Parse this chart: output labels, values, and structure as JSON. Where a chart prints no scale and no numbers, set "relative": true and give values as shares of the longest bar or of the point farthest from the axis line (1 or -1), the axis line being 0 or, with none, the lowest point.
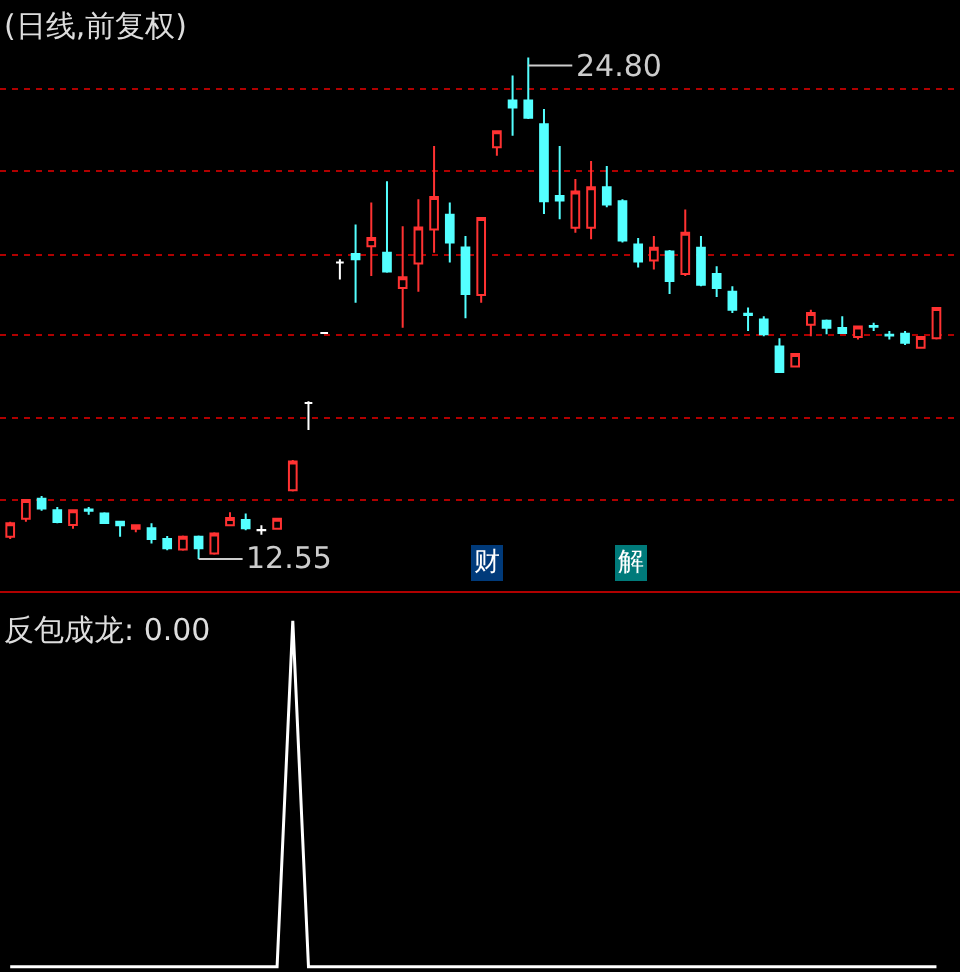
{
  "chart_data": [
    {
      "type": "candlestick",
      "title": "(日线,前复权)",
      "categories": [
        null,
        null,
        null,
        null,
        null,
        null,
        null,
        null,
        null,
        null,
        null,
        null,
        null,
        null,
        null,
        null,
        null,
        null,
        null,
        null,
        null,
        null,
        null,
        null,
        null,
        null,
        null,
        null,
        null,
        null,
        null,
        null,
        null,
        null,
        null,
        null,
        null,
        null,
        null,
        null,
        null,
        null,
        null,
        null,
        null,
        null,
        null,
        null,
        null,
        null,
        null,
        null,
        null,
        null,
        null,
        null,
        null,
        null,
        null,
        null
      ],
      "ohlc": [
        [
          13.09,
          13.46,
          13.04,
          13.42
        ],
        [
          13.53,
          13.99,
          13.46,
          13.99
        ],
        [
          14.02,
          14.09,
          13.73,
          13.78
        ],
        [
          13.74,
          13.82,
          13.42,
          13.45
        ],
        [
          13.38,
          13.74,
          13.29,
          13.74
        ],
        [
          13.76,
          13.82,
          13.63,
          13.73
        ],
        [
          13.66,
          13.69,
          13.42,
          13.43
        ],
        [
          13.46,
          13.48,
          13.09,
          13.37
        ],
        [
          13.29,
          13.37,
          13.2,
          13.37
        ],
        [
          13.3,
          13.42,
          12.93,
          13.04
        ],
        [
          13.04,
          13.11,
          12.76,
          12.81
        ],
        [
          12.78,
          13.12,
          12.75,
          13.09
        ],
        [
          13.09,
          13.12,
          12.55,
          12.81
        ],
        [
          12.68,
          13.2,
          12.65,
          13.17
        ],
        [
          13.37,
          13.69,
          13.37,
          13.55
        ],
        [
          13.5,
          13.66,
          13.25,
          13.3
        ],
        [
          13.26,
          13.37,
          13.14,
          13.25
        ],
        [
          13.29,
          13.53,
          13.29,
          13.53
        ],
        [
          14.23,
          14.97,
          14.2,
          14.93
        ],
        [
          16.36,
          16.4,
          15.7,
          16.36
        ],
        [
          18.07,
          18.07,
          18.07,
          18.07
        ],
        [
          19.79,
          19.87,
          19.38,
          19.79
        ],
        [
          20.0,
          20.72,
          18.81,
          19.87
        ],
        [
          20.19,
          21.26,
          19.46,
          20.39
        ],
        [
          20.03,
          21.78,
          19.54,
          19.57
        ],
        [
          19.17,
          20.68,
          18.2,
          19.43
        ],
        [
          19.77,
          21.34,
          19.08,
          20.65
        ],
        [
          20.6,
          22.64,
          20.03,
          21.39
        ],
        [
          20.96,
          21.26,
          19.79,
          20.28
        ],
        [
          20.16,
          20.44,
          18.43,
          19.02
        ],
        [
          19.0,
          20.88,
          18.81,
          20.88
        ],
        [
          22.61,
          23.0,
          22.4,
          23.0
        ],
        [
          23.75,
          24.36,
          22.89,
          23.58
        ],
        [
          23.75,
          24.8,
          23.3,
          23.33
        ],
        [
          23.17,
          23.54,
          20.98,
          21.29
        ],
        [
          21.42,
          22.64,
          20.85,
          21.31
        ],
        [
          20.64,
          21.83,
          20.52,
          21.53
        ],
        [
          20.64,
          22.27,
          20.36,
          21.63
        ],
        [
          21.63,
          22.15,
          21.14,
          21.21
        ],
        [
          21.29,
          21.34,
          20.28,
          20.33
        ],
        [
          20.23,
          20.39,
          19.67,
          19.82
        ],
        [
          19.84,
          20.44,
          19.62,
          20.15
        ],
        [
          20.06,
          20.1,
          19.02,
          19.34
        ],
        [
          19.51,
          21.09,
          19.46,
          20.52
        ],
        [
          20.15,
          20.44,
          19.21,
          19.25
        ],
        [
          19.51,
          19.7,
          18.95,
          19.17
        ],
        [
          19.08,
          19.21,
          18.56,
          18.64
        ],
        [
          18.54,
          18.69,
          18.12,
          18.51
        ],
        [
          18.4,
          18.48,
          17.99,
          18.04
        ],
        [
          17.74,
          17.94,
          17.09,
          17.12
        ],
        [
          17.25,
          17.56,
          17.25,
          17.56
        ],
        [
          18.27,
          18.64,
          17.99,
          18.56
        ],
        [
          18.37,
          18.4,
          18.04,
          18.2
        ],
        [
          18.19,
          18.48,
          18.05,
          18.07
        ],
        [
          17.97,
          18.23,
          17.91,
          18.23
        ],
        [
          18.24,
          18.32,
          18.12,
          18.22
        ],
        [
          18.03,
          18.12,
          17.91,
          18.01
        ],
        [
          18.05,
          18.12,
          17.78,
          17.83
        ],
        [
          17.71,
          17.97,
          17.71,
          17.97
        ],
        [
          17.94,
          18.68,
          17.91,
          18.68
        ]
      ],
      "colors": [
        "#ff3232",
        "#ff3232",
        "#54ffff",
        "#54ffff",
        "#ff3232",
        "#54ffff",
        "#54ffff",
        "#54ffff",
        "#ff3232",
        "#54ffff",
        "#54ffff",
        "#ff3232",
        "#54ffff",
        "#ff3232",
        "#ff3232",
        "#54ffff",
        "#ffffff",
        "#ff3232",
        "#ff3232",
        "#ffffff",
        "#ffffff",
        "#ffffff",
        "#54ffff",
        "#ff3232",
        "#54ffff",
        "#ff3232",
        "#ff3232",
        "#ff3232",
        "#54ffff",
        "#54ffff",
        "#ff3232",
        "#ff3232",
        "#54ffff",
        "#54ffff",
        "#54ffff",
        "#54ffff",
        "#ff3232",
        "#ff3232",
        "#54ffff",
        "#54ffff",
        "#54ffff",
        "#ff3232",
        "#54ffff",
        "#ff3232",
        "#54ffff",
        "#54ffff",
        "#54ffff",
        "#54ffff",
        "#54ffff",
        "#54ffff",
        "#ff3232",
        "#ff3232",
        "#54ffff",
        "#54ffff",
        "#ff3232",
        "#54ffff",
        "#54ffff",
        "#54ffff",
        "#ff3232",
        "#ff3232"
      ],
      "yticks": [
        {
          "value": 13.99,
          "label": null
        },
        {
          "value": 16.0,
          "label": null
        },
        {
          "value": 18.02,
          "label": null
        },
        {
          "value": 19.98,
          "label": null
        },
        {
          "value": 22.04,
          "label": null
        },
        {
          "value": 24.03,
          "label": null
        }
      ],
      "grid": "y",
      "annotations": [
        "24.80",
        "12.55",
        "财",
        "解"
      ]
    },
    {
      "type": "line",
      "title": "反包成龙: 0.00",
      "relative": true,
      "color": "#ffffff",
      "categories": [
        null,
        null,
        null,
        null,
        null,
        null,
        null,
        null,
        null,
        null,
        null,
        null,
        null,
        null,
        null,
        null,
        null,
        null,
        null,
        null,
        null,
        null,
        null,
        null,
        null,
        null,
        null,
        null,
        null,
        null,
        null,
        null,
        null,
        null,
        null,
        null,
        null,
        null,
        null,
        null,
        null,
        null,
        null,
        null,
        null,
        null,
        null,
        null,
        null,
        null,
        null,
        null,
        null,
        null,
        null,
        null,
        null,
        null,
        null,
        null
      ],
      "values": [
        0,
        0,
        0,
        0,
        0,
        0,
        0,
        0,
        0,
        0,
        0,
        0,
        0,
        0,
        0,
        0,
        0,
        0,
        1,
        0,
        0,
        0,
        0,
        0,
        0,
        0,
        0,
        0,
        0,
        0,
        0,
        0,
        0,
        0,
        0,
        0,
        0,
        0,
        0,
        0,
        0,
        0,
        0,
        0,
        0,
        0,
        0,
        0,
        0,
        0,
        0,
        0,
        0,
        0,
        0,
        0,
        0,
        0,
        0,
        0
      ]
    }
  ]
}
